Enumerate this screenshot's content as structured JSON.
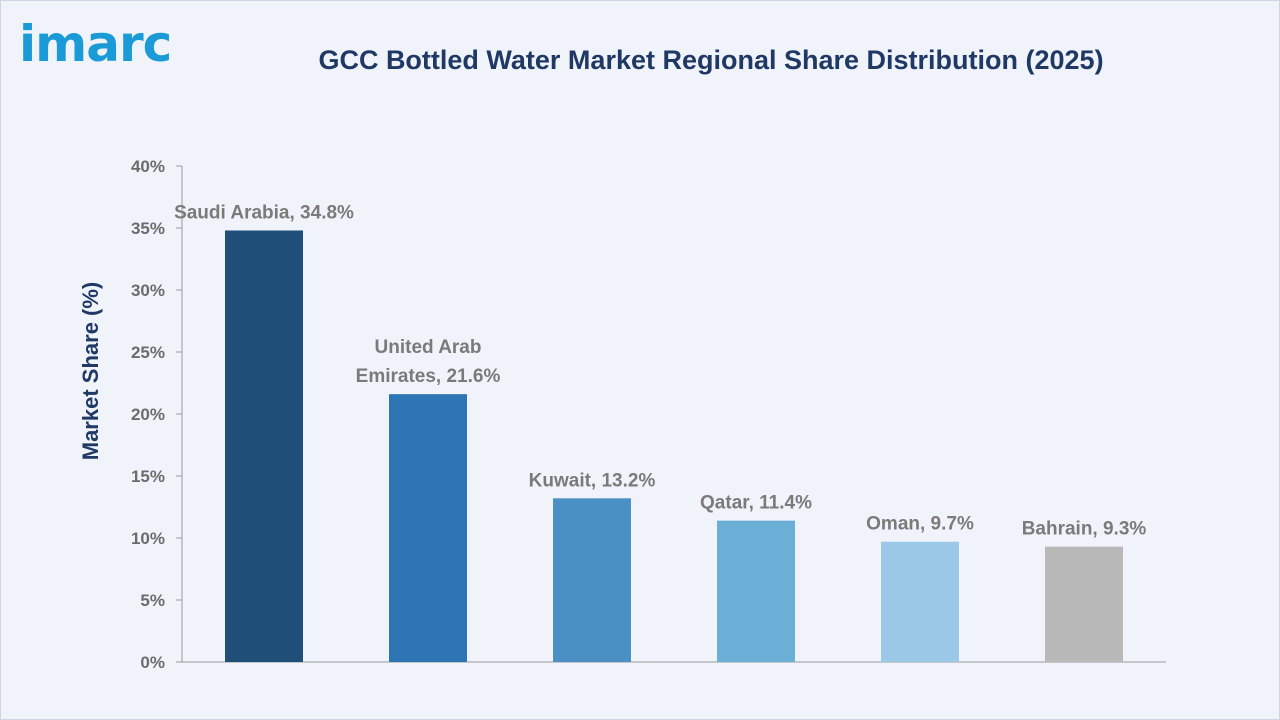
{
  "logo": {
    "text": "imarc",
    "color": "#1a9ad6"
  },
  "chart_data": {
    "type": "bar",
    "title": "GCC Bottled Water Market Regional Share Distribution (2025)",
    "ylabel": "Market Share (%)",
    "xlabel": "",
    "ylim": [
      0,
      40
    ],
    "yticks": [
      0,
      5,
      10,
      15,
      20,
      25,
      30,
      35,
      40
    ],
    "ytick_labels": [
      "0%",
      "5%",
      "10%",
      "15%",
      "20%",
      "25%",
      "30%",
      "35%",
      "40%"
    ],
    "grid": false,
    "categories": [
      "Saudi Arabia",
      "United Arab Emirates",
      "Kuwait",
      "Qatar",
      "Oman",
      "Bahrain"
    ],
    "values": [
      34.8,
      21.6,
      13.2,
      11.4,
      9.7,
      9.3
    ],
    "data_labels": [
      [
        "Saudi Arabia, 34.8%"
      ],
      [
        "United Arab",
        "Emirates, 21.6%"
      ],
      [
        "Kuwait, 13.2%"
      ],
      [
        "Qatar, 11.4%"
      ],
      [
        "Oman, 9.7%"
      ],
      [
        "Bahrain, 9.3%"
      ]
    ],
    "colors": [
      "#1f4e79",
      "#2e75b6",
      "#4a90c4",
      "#6baed6",
      "#9ac8e6",
      "#b8b8b8"
    ]
  }
}
